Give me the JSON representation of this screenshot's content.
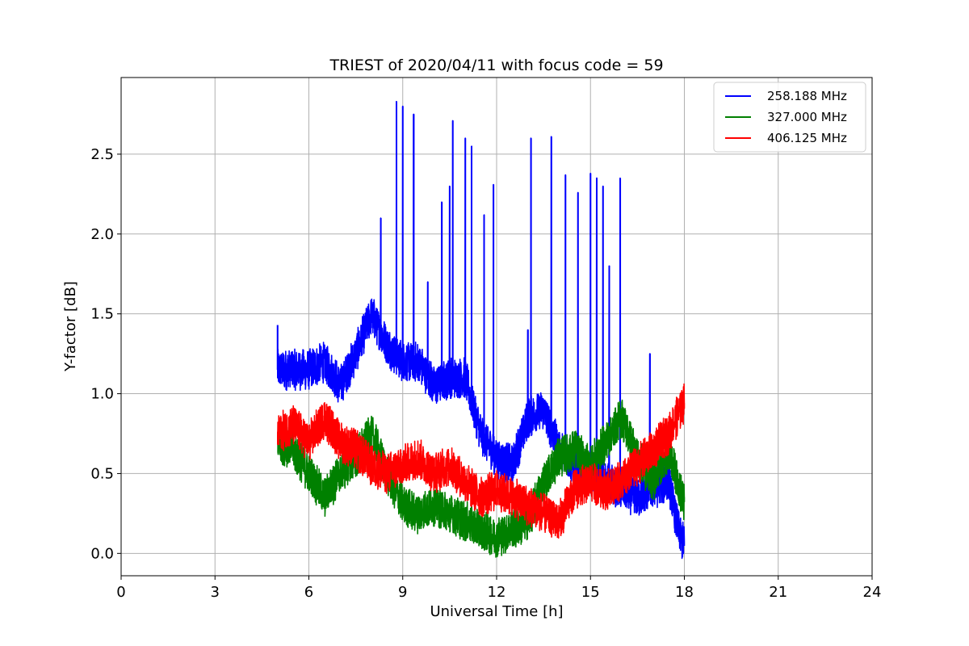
{
  "chart_data": {
    "type": "line",
    "title": "TRIEST of 2020/04/11 with focus code = 59",
    "xlabel": "Universal Time [h]",
    "ylabel": "Y-factor [dB]",
    "xlim": [
      0,
      24
    ],
    "ylim": [
      -0.14,
      2.98
    ],
    "xticks": [
      0,
      3,
      6,
      9,
      12,
      15,
      18,
      21,
      24
    ],
    "xtick_labels": [
      "0",
      "3",
      "6",
      "9",
      "12",
      "15",
      "18",
      "21",
      "24"
    ],
    "yticks": [
      0.0,
      0.5,
      1.0,
      1.5,
      2.0,
      2.5
    ],
    "ytick_labels": [
      "0.0",
      "0.5",
      "1.0",
      "1.5",
      "2.0",
      "2.5"
    ],
    "grid": true,
    "legend_position": "top-right",
    "series": [
      {
        "name": "258.188 MHz",
        "color": "#0000ff",
        "x": [
          5.0,
          5.5,
          6.0,
          6.5,
          7.0,
          7.5,
          8.0,
          8.5,
          9.0,
          9.5,
          10.0,
          10.5,
          11.0,
          11.5,
          12.0,
          12.5,
          13.0,
          13.5,
          14.0,
          14.5,
          15.0,
          15.5,
          16.0,
          16.5,
          17.0,
          17.5,
          17.8,
          18.0
        ],
        "values": [
          1.15,
          1.15,
          1.15,
          1.2,
          1.05,
          1.25,
          1.5,
          1.3,
          1.2,
          1.2,
          1.05,
          1.1,
          1.1,
          0.75,
          0.6,
          0.55,
          0.85,
          0.9,
          0.65,
          0.55,
          0.5,
          0.45,
          0.4,
          0.35,
          0.4,
          0.45,
          0.15,
          0.05
        ],
        "spikes": [
          {
            "x": 5.0,
            "y": 1.43
          },
          {
            "x": 8.3,
            "y": 2.1
          },
          {
            "x": 8.8,
            "y": 2.83
          },
          {
            "x": 9.0,
            "y": 2.8
          },
          {
            "x": 9.35,
            "y": 2.75
          },
          {
            "x": 9.8,
            "y": 1.7
          },
          {
            "x": 10.25,
            "y": 2.2
          },
          {
            "x": 10.5,
            "y": 2.3
          },
          {
            "x": 10.6,
            "y": 2.71
          },
          {
            "x": 11.0,
            "y": 2.6
          },
          {
            "x": 11.2,
            "y": 2.55
          },
          {
            "x": 11.6,
            "y": 2.12
          },
          {
            "x": 11.9,
            "y": 2.31
          },
          {
            "x": 13.0,
            "y": 1.4
          },
          {
            "x": 13.1,
            "y": 2.6
          },
          {
            "x": 13.75,
            "y": 2.61
          },
          {
            "x": 14.2,
            "y": 2.37
          },
          {
            "x": 14.6,
            "y": 2.26
          },
          {
            "x": 15.0,
            "y": 2.38
          },
          {
            "x": 15.2,
            "y": 2.35
          },
          {
            "x": 15.4,
            "y": 2.3
          },
          {
            "x": 15.6,
            "y": 1.8
          },
          {
            "x": 15.95,
            "y": 2.35
          },
          {
            "x": 16.9,
            "y": 1.25
          }
        ]
      },
      {
        "name": "327.000 MHz",
        "color": "#008000",
        "x": [
          5.0,
          5.5,
          6.0,
          6.5,
          7.0,
          7.5,
          8.0,
          8.5,
          9.0,
          9.5,
          10.0,
          10.5,
          11.0,
          11.5,
          12.0,
          12.5,
          13.0,
          13.5,
          14.0,
          14.5,
          15.0,
          15.5,
          16.0,
          16.5,
          17.0,
          17.5,
          18.0
        ],
        "values": [
          0.7,
          0.65,
          0.5,
          0.35,
          0.5,
          0.6,
          0.75,
          0.5,
          0.3,
          0.25,
          0.3,
          0.25,
          0.2,
          0.15,
          0.1,
          0.15,
          0.2,
          0.45,
          0.6,
          0.65,
          0.55,
          0.7,
          0.85,
          0.6,
          0.45,
          0.65,
          0.3
        ]
      },
      {
        "name": "406.125 MHz",
        "color": "#ff0000",
        "x": [
          5.0,
          5.5,
          6.0,
          6.5,
          7.0,
          7.5,
          8.0,
          8.5,
          9.0,
          9.5,
          10.0,
          10.5,
          11.0,
          11.5,
          12.0,
          12.5,
          13.0,
          13.5,
          14.0,
          14.5,
          15.0,
          15.5,
          16.0,
          16.5,
          17.0,
          17.5,
          18.0
        ],
        "values": [
          0.75,
          0.8,
          0.7,
          0.85,
          0.7,
          0.65,
          0.55,
          0.5,
          0.55,
          0.6,
          0.5,
          0.55,
          0.45,
          0.35,
          0.4,
          0.35,
          0.3,
          0.25,
          0.2,
          0.4,
          0.45,
          0.4,
          0.45,
          0.55,
          0.65,
          0.75,
          0.95
        ]
      }
    ]
  }
}
